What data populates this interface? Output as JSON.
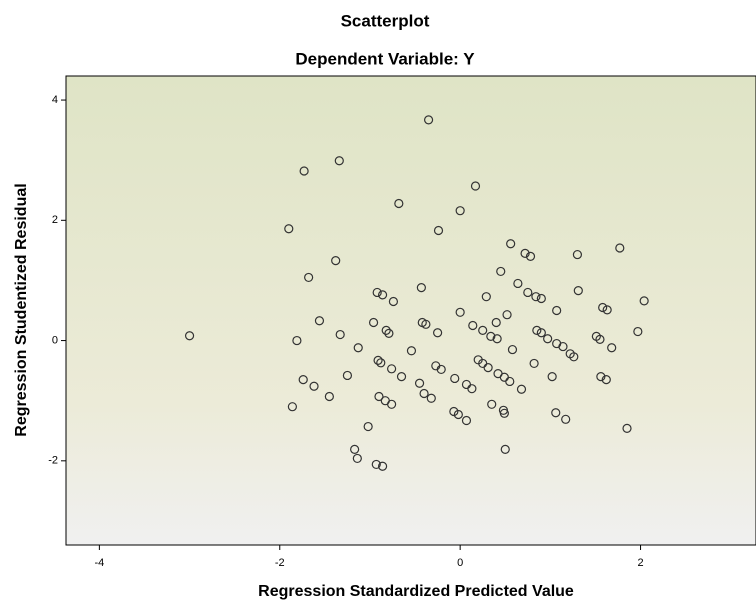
{
  "chart_data": {
    "type": "scatter",
    "title": "Scatterplot",
    "subtitle": "Dependent Variable: Y",
    "x_label": "Regression Standardized Predicted Value",
    "y_label": "Regression Studentized Residual",
    "xlim": [
      -4.37,
      3.28
    ],
    "ylim": [
      -3.4,
      4.4
    ],
    "xticks": [
      -4,
      -2,
      0,
      2
    ],
    "yticks": [
      4,
      2,
      0,
      -2
    ],
    "color": "#333333",
    "x": [
      -0.35,
      -1.34,
      -1.73,
      0.17,
      -0.68,
      0,
      -1.9,
      -0.24,
      0.56,
      1.77,
      0.72,
      0.78,
      1.3,
      -1.38,
      0.45,
      -1.68,
      0.64,
      -0.43,
      1.31,
      0.75,
      0.84,
      0.9,
      -0.92,
      -0.86,
      0.29,
      2.04,
      -0.74,
      1.58,
      1.63,
      1.07,
      0,
      0.52,
      -1.56,
      -0.96,
      -0.42,
      -0.38,
      0.14,
      0.4,
      -0.82,
      -0.79,
      0.85,
      0.9,
      0.25,
      1.97,
      -0.25,
      -1.33,
      0.34,
      0.41,
      0.97,
      -3.0,
      1.51,
      1.55,
      -1.81,
      1.07,
      1.14,
      1.68,
      -1.13,
      0.58,
      -0.54,
      1.22,
      1.26,
      -0.91,
      -0.88,
      0.2,
      0.25,
      0.31,
      -0.27,
      -0.21,
      0.82,
      -0.76,
      -0.65,
      -1.25,
      0.42,
      0.49,
      0.55,
      -0.06,
      1.02,
      1.56,
      1.62,
      -1.74,
      -0.45,
      0.07,
      0.13,
      -1.62,
      0.68,
      -0.4,
      -0.32,
      -1.45,
      -0.9,
      -0.83,
      -0.76,
      0.35,
      -1.86,
      -0.07,
      -0.02,
      0.48,
      0.49,
      1.06,
      0.07,
      1.17,
      -1.02,
      1.85,
      -1.17,
      0.5,
      -1.14,
      -0.93,
      -0.86
    ],
    "y": [
      3.67,
      2.99,
      2.82,
      2.57,
      2.28,
      2.16,
      1.86,
      1.83,
      1.61,
      1.54,
      1.45,
      1.4,
      1.43,
      1.33,
      1.15,
      1.05,
      0.95,
      0.88,
      0.83,
      0.8,
      0.73,
      0.7,
      0.8,
      0.76,
      0.73,
      0.66,
      0.65,
      0.55,
      0.51,
      0.5,
      0.47,
      0.43,
      0.33,
      0.3,
      0.3,
      0.27,
      0.25,
      0.3,
      0.17,
      0.12,
      0.17,
      0.13,
      0.17,
      0.15,
      0.13,
      0.1,
      0.07,
      0.03,
      0.03,
      0.08,
      0.07,
      0.02,
      0,
      -0.05,
      -0.1,
      -0.12,
      -0.12,
      -0.15,
      -0.17,
      -0.22,
      -0.27,
      -0.33,
      -0.37,
      -0.32,
      -0.38,
      -0.45,
      -0.42,
      -0.48,
      -0.38,
      -0.47,
      -0.6,
      -0.58,
      -0.55,
      -0.61,
      -0.68,
      -0.63,
      -0.6,
      -0.6,
      -0.65,
      -0.65,
      -0.71,
      -0.73,
      -0.8,
      -0.76,
      -0.81,
      -0.88,
      -0.96,
      -0.93,
      -0.93,
      -1.0,
      -1.06,
      -1.06,
      -1.1,
      -1.18,
      -1.23,
      -1.16,
      -1.21,
      -1.2,
      -1.33,
      -1.31,
      -1.43,
      -1.46,
      -1.81,
      -1.81,
      -1.96,
      -2.06,
      -2.09
    ]
  }
}
